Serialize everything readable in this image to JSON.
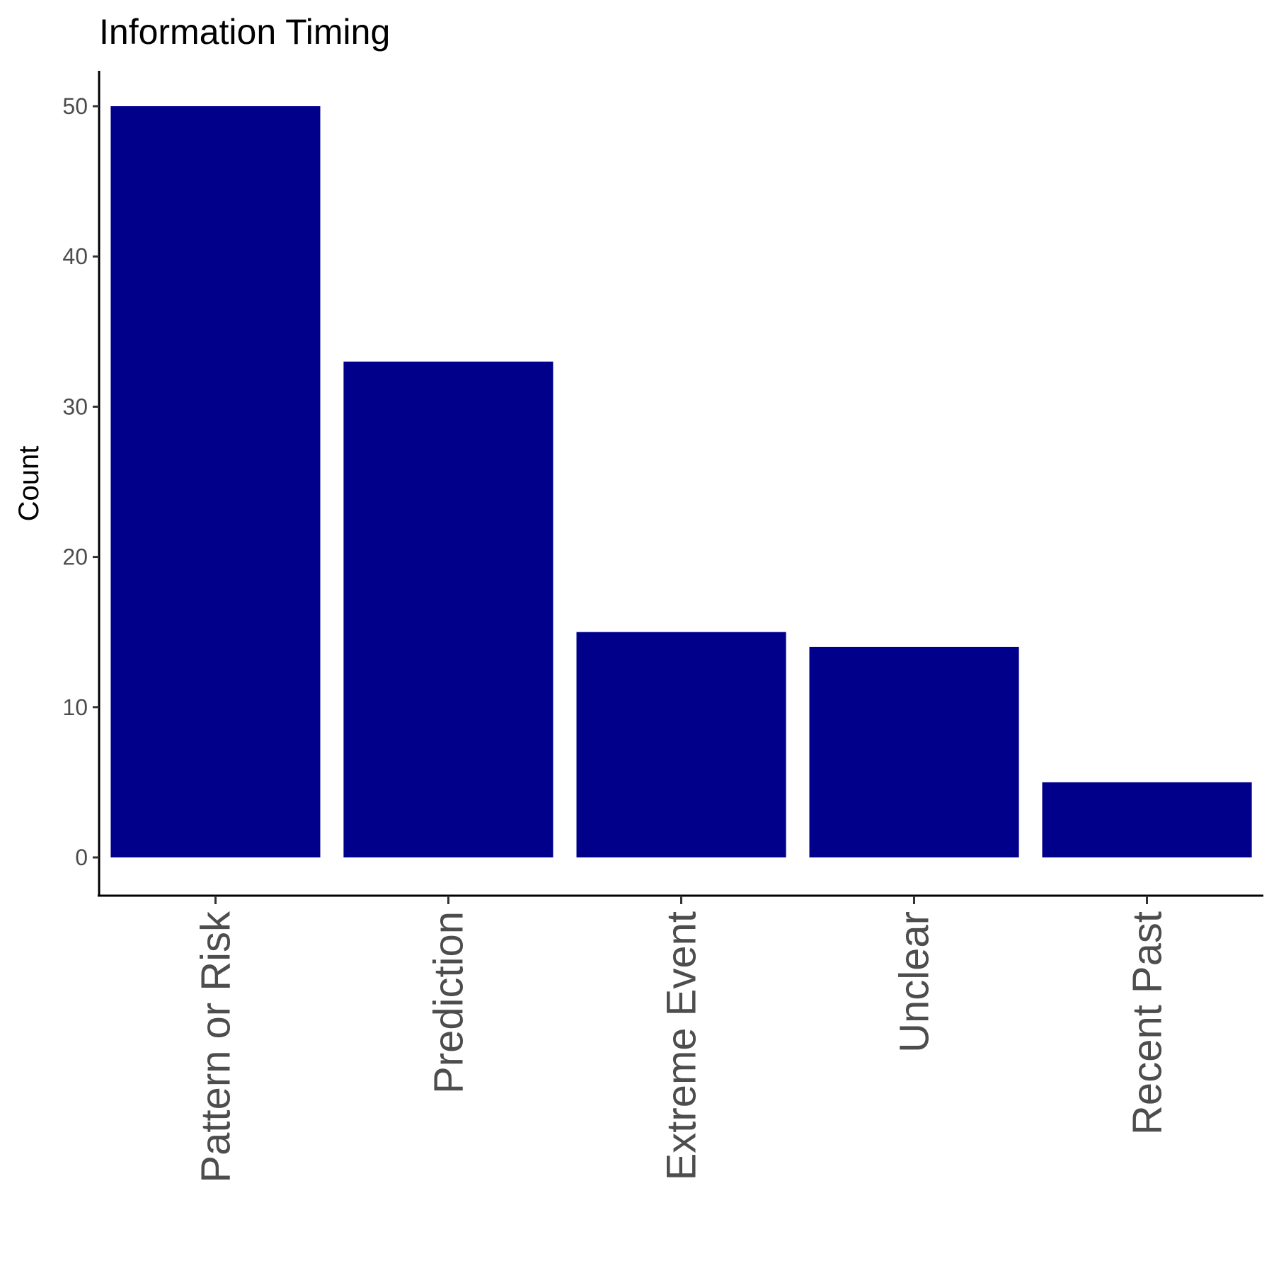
{
  "chart_data": {
    "type": "bar",
    "title": "Information Timing",
    "xlabel": "",
    "ylabel": "Count",
    "categories": [
      "Pattern or Risk",
      "Prediction",
      "Extreme Event",
      "Unclear",
      "Recent Past"
    ],
    "values": [
      50,
      33,
      15,
      14,
      5
    ],
    "ylim": [
      0,
      52.5
    ],
    "yticks": [
      0,
      10,
      20,
      30,
      40,
      50
    ],
    "ytick_labels": [
      "0",
      "10",
      "20",
      "30",
      "40",
      "50"
    ],
    "bar_color": "#00008B",
    "grid": false,
    "legend": "none"
  }
}
